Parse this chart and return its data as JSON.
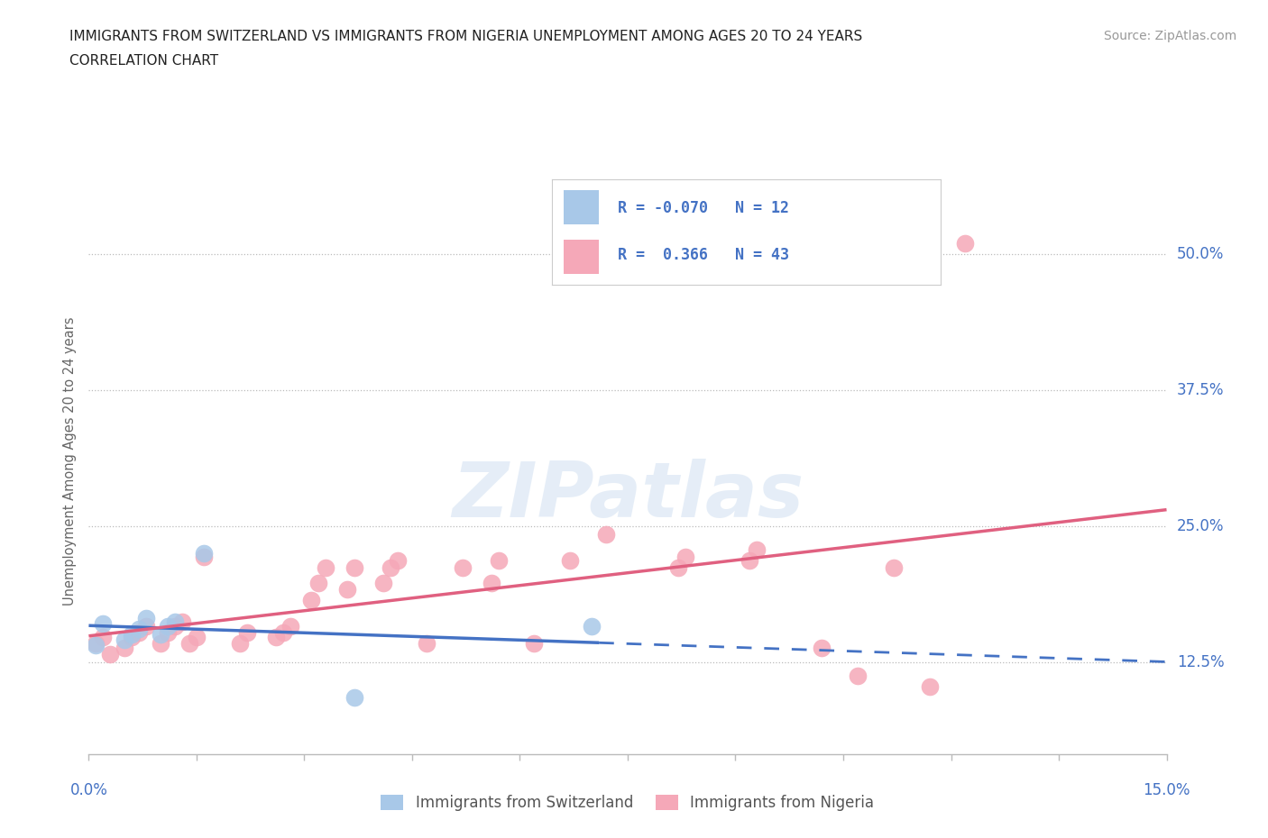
{
  "title_line1": "IMMIGRANTS FROM SWITZERLAND VS IMMIGRANTS FROM NIGERIA UNEMPLOYMENT AMONG AGES 20 TO 24 YEARS",
  "title_line2": "CORRELATION CHART",
  "source_text": "Source: ZipAtlas.com",
  "ylabel": "Unemployment Among Ages 20 to 24 years",
  "ytick_labels": [
    "12.5%",
    "25.0%",
    "37.5%",
    "50.0%"
  ],
  "ytick_values": [
    0.125,
    0.25,
    0.375,
    0.5
  ],
  "xlim": [
    0.0,
    0.15
  ],
  "ylim": [
    0.04,
    0.58
  ],
  "watermark": "ZIPatlas",
  "legend_r_swiss": "-0.070",
  "legend_n_swiss": "12",
  "legend_r_nigeria": "0.366",
  "legend_n_nigeria": "43",
  "swiss_color": "#a8c8e8",
  "nigeria_color": "#f5a8b8",
  "trendline_swiss_color": "#4472c4",
  "trendline_nigeria_color": "#e06080",
  "swiss_x": [
    0.001,
    0.002,
    0.005,
    0.006,
    0.007,
    0.008,
    0.01,
    0.011,
    0.012,
    0.016,
    0.037,
    0.07
  ],
  "swiss_y": [
    0.14,
    0.16,
    0.145,
    0.15,
    0.155,
    0.165,
    0.15,
    0.158,
    0.162,
    0.225,
    0.092,
    0.158
  ],
  "nigeria_x": [
    0.001,
    0.002,
    0.003,
    0.005,
    0.006,
    0.007,
    0.008,
    0.01,
    0.011,
    0.012,
    0.013,
    0.014,
    0.015,
    0.016,
    0.021,
    0.022,
    0.026,
    0.027,
    0.028,
    0.031,
    0.032,
    0.033,
    0.036,
    0.037,
    0.041,
    0.042,
    0.043,
    0.047,
    0.052,
    0.056,
    0.057,
    0.062,
    0.067,
    0.072,
    0.082,
    0.083,
    0.092,
    0.093,
    0.102,
    0.107,
    0.112,
    0.117,
    0.122
  ],
  "nigeria_y": [
    0.142,
    0.148,
    0.132,
    0.138,
    0.148,
    0.152,
    0.158,
    0.142,
    0.152,
    0.158,
    0.162,
    0.142,
    0.148,
    0.222,
    0.142,
    0.152,
    0.148,
    0.152,
    0.158,
    0.182,
    0.198,
    0.212,
    0.192,
    0.212,
    0.198,
    0.212,
    0.218,
    0.142,
    0.212,
    0.198,
    0.218,
    0.142,
    0.218,
    0.242,
    0.212,
    0.222,
    0.218,
    0.228,
    0.138,
    0.112,
    0.212,
    0.102,
    0.51
  ],
  "trend_swiss_x_start": 0.0,
  "trend_swiss_x_solid_end": 0.071,
  "trend_swiss_x_dash_end": 0.15,
  "trend_nigeria_x_start": 0.0,
  "trend_nigeria_x_end": 0.15,
  "dot_size": 200
}
